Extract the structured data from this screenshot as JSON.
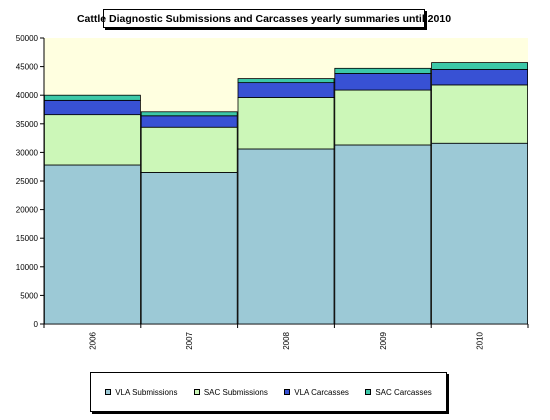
{
  "chart_data": {
    "type": "bar",
    "stacked": true,
    "title": "Cattle Diagnostic Submissions and Carcasses yearly summaries until 2010",
    "xlabel": "",
    "ylabel": "",
    "categories": [
      "2006",
      "2007",
      "2008",
      "2009",
      "2010"
    ],
    "ylim": [
      0,
      50000
    ],
    "yticks": [
      0,
      5000,
      10000,
      15000,
      20000,
      25000,
      30000,
      35000,
      40000,
      45000,
      50000
    ],
    "grid": false,
    "legend_position": "bottom",
    "plot_background": "#ffffe0",
    "series": [
      {
        "name": "VLA Submissions",
        "color": "#9cc9d6",
        "values": [
          27800,
          26500,
          30600,
          31300,
          31600
        ]
      },
      {
        "name": "SAC Submissions",
        "color": "#ccf7b8",
        "values": [
          8800,
          7900,
          9000,
          9600,
          10200
        ]
      },
      {
        "name": "VLA Carcasses",
        "color": "#3851d4",
        "values": [
          2500,
          2000,
          2600,
          2900,
          2700
        ]
      },
      {
        "name": "SAC Carcasses",
        "color": "#3cc8a8",
        "values": [
          900,
          700,
          700,
          900,
          1200
        ]
      }
    ]
  }
}
